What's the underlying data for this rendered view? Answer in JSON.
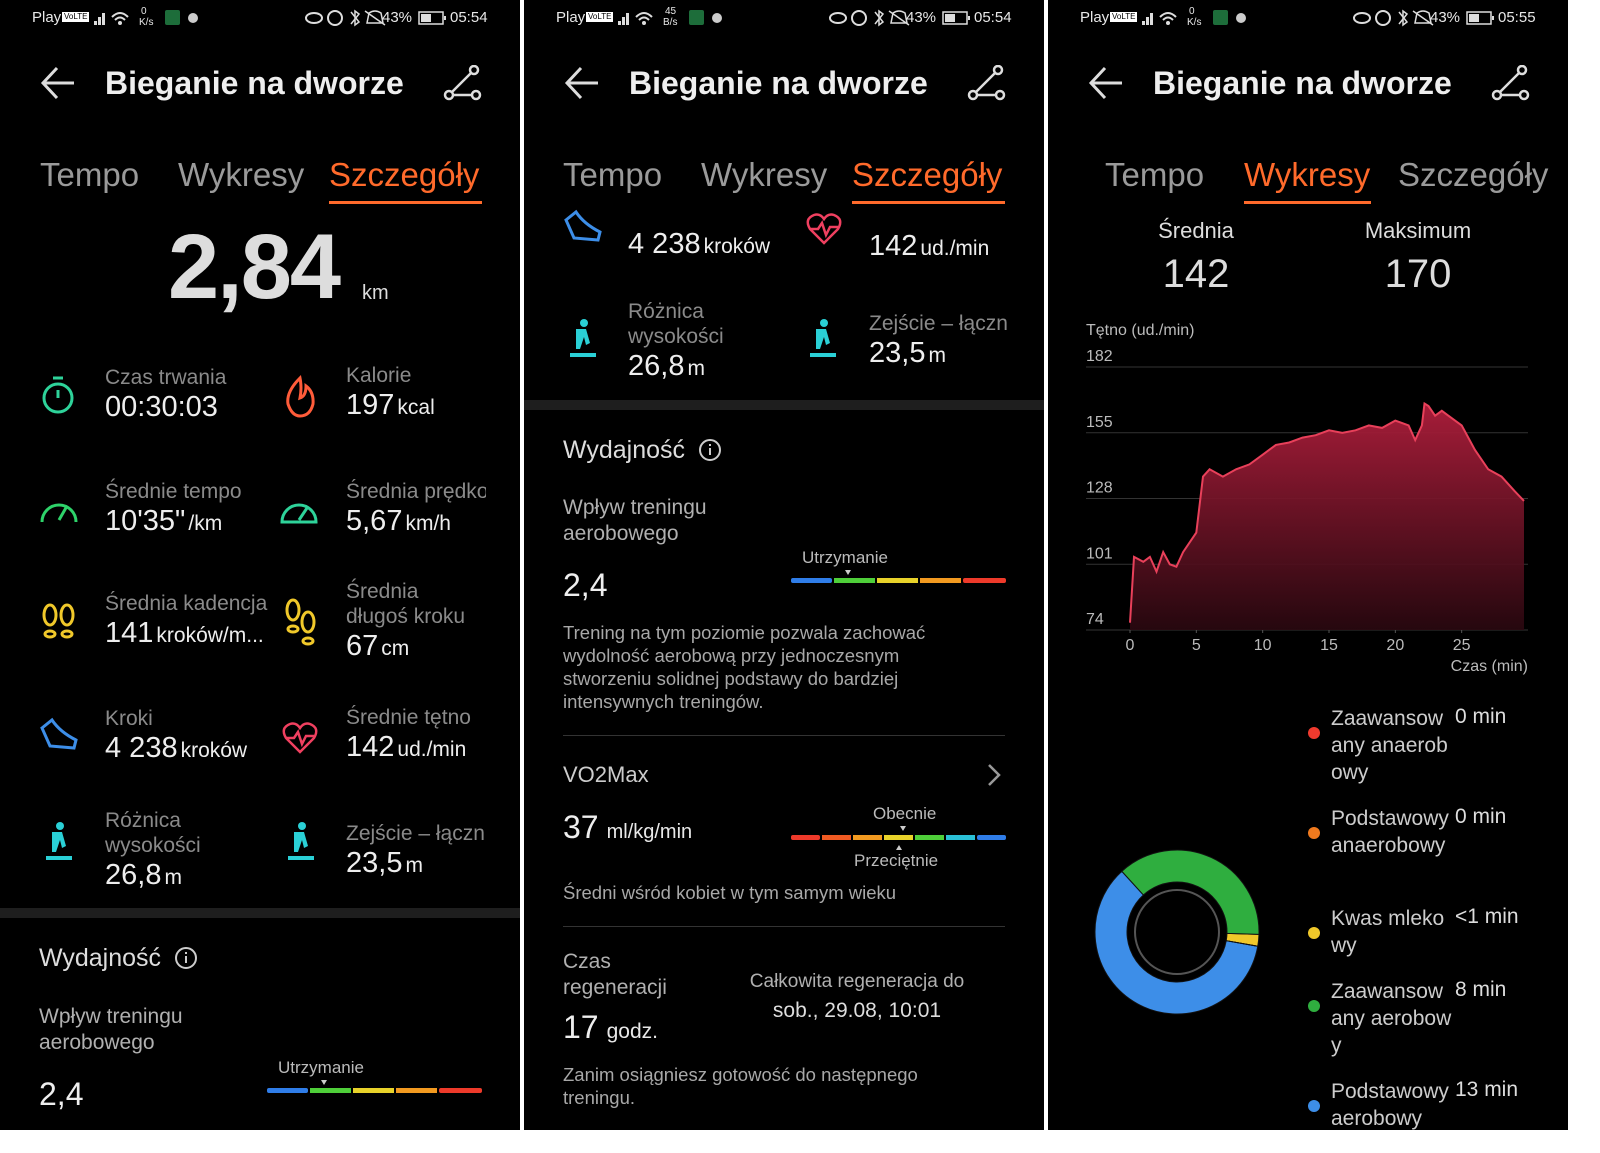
{
  "status_bars": [
    {
      "carrier": "Play",
      "network": "VoLTE",
      "speed": "0",
      "speed_unit": "K/s",
      "battery": "43%",
      "time": "05:54"
    },
    {
      "carrier": "Play",
      "network": "VoLTE",
      "speed": "45",
      "speed_unit": "B/s",
      "battery": "43%",
      "time": "05:54"
    },
    {
      "carrier": "Play",
      "network": "VoLTE",
      "speed": "0",
      "speed_unit": "K/s",
      "battery": "43%",
      "time": "05:55"
    }
  ],
  "header": {
    "title": "Bieganie na dworze"
  },
  "tabs": [
    "Tempo",
    "Wykresy",
    "Szczegóły"
  ],
  "screens": [
    {
      "active_tab": "Szczegóły",
      "distance": {
        "value": "2,84",
        "unit": "km"
      },
      "metrics": [
        {
          "label": "Czas trwania",
          "value": "00:30:03"
        },
        {
          "label": "Kalorie",
          "value": "197",
          "unit": "kcal"
        },
        {
          "label": "Średnie tempo",
          "value": "10'35\"",
          "unit": "/km"
        },
        {
          "label": "Średnia prędko",
          "value": "5,67",
          "unit": "km/h"
        },
        {
          "label": "Średnia kadencja",
          "value": "141",
          "unit": "kroków/m..."
        },
        {
          "label": "Średnia długoś kroku",
          "value": "67",
          "unit": "cm"
        },
        {
          "label": "Kroki",
          "value": "4 238",
          "unit": "kroków"
        },
        {
          "label": "Średnie tętno",
          "value": "142",
          "unit": "ud./min"
        },
        {
          "label": "Różnica wysokości",
          "value": "26,8",
          "unit": "m"
        },
        {
          "label": "Zejście – łączn",
          "value": "23,5",
          "unit": "m"
        }
      ],
      "performance": {
        "title": "Wydajność",
        "label": "Wpływ treningu aerobowego",
        "value": "2,4",
        "level": "Utrzymanie"
      }
    },
    {
      "active_tab": "Szczegóły",
      "metrics": [
        {
          "value": "4 238",
          "unit": "kroków"
        },
        {
          "value": "142",
          "unit": "ud./min"
        },
        {
          "label": "Różnica wysokości",
          "value": "26,8",
          "unit": "m"
        },
        {
          "label": "Zejście – łączn",
          "value": "23,5",
          "unit": "m"
        }
      ],
      "performance": {
        "title": "Wydajność",
        "label": "Wpływ treningu aerobowego",
        "value": "2,4",
        "level": "Utrzymanie",
        "description": "Trening na tym poziomie pozwala zachować wydolność aerobową przy jednoczesnym stworzeniu solidnej podstawy do bardziej intensywnych treningów."
      },
      "vo2max": {
        "title": "VO2Max",
        "value": "37",
        "unit": "ml/kg/min",
        "current": "Obecnie",
        "average": "Przeciętnie",
        "note": "Średni wśród kobiet w tym samym wieku"
      },
      "recovery": {
        "title": "Czas regeneracji",
        "value": "17",
        "unit": "godz.",
        "full_label": "Całkowita regeneracja do",
        "full_date": "sob., 29.08, 10:01",
        "note": "Zanim osiągniesz gotowość do następnego treningu."
      }
    },
    {
      "active_tab": "Wykresy",
      "summary": [
        {
          "label": "Średnia",
          "value": "142"
        },
        {
          "label": "Maksimum",
          "value": "170"
        }
      ],
      "chart": {
        "type": "area",
        "y_label": "Tętno (ud./min)",
        "x_label": "Czas (min)",
        "x": [
          0,
          0.3,
          1,
          1.5,
          2,
          2.5,
          3,
          3.5,
          4,
          5,
          5.5,
          6,
          7,
          8,
          9,
          10,
          11,
          12,
          13,
          14,
          15,
          16,
          17,
          18,
          19,
          20,
          21,
          21.5,
          22,
          22.2,
          22.5,
          23,
          23.5,
          24,
          25,
          26,
          27,
          28,
          29,
          29.7
        ],
        "values": [
          77,
          104,
          102,
          104,
          98,
          106,
          101,
          100,
          106,
          114,
          137,
          140,
          137,
          140,
          142,
          146,
          150,
          151,
          153,
          154,
          156,
          155,
          156,
          158,
          157,
          160,
          158,
          152,
          158,
          167,
          166,
          162,
          164,
          162,
          158,
          148,
          140,
          137,
          131,
          127
        ],
        "color": "#e8405a",
        "xlim": [
          0,
          30
        ],
        "ylim": [
          74,
          182
        ],
        "xticks": [
          0,
          5,
          10,
          15,
          20,
          25
        ],
        "yticks": [
          74,
          101,
          128,
          155,
          182
        ],
        "grid": true
      },
      "zones": [
        {
          "name": "Zaawansowany anaerobowy",
          "value": 0,
          "label": "0 min",
          "color": "#f03a2e"
        },
        {
          "name": "Podstawowy anaerobowy",
          "value": 0,
          "label": "0 min",
          "color": "#f07a1e"
        },
        {
          "name": "Kwas mlekowy",
          "value": 0.5,
          "label": "<1 min",
          "color": "#f0c82a"
        },
        {
          "name": "Zaawansowany aerobowy",
          "value": 8,
          "label": "8 min",
          "color": "#2fae3f"
        },
        {
          "name": "Podstawowy aerobowy",
          "value": 13,
          "label": "13 min",
          "color": "#3d8ee8"
        }
      ]
    }
  ]
}
